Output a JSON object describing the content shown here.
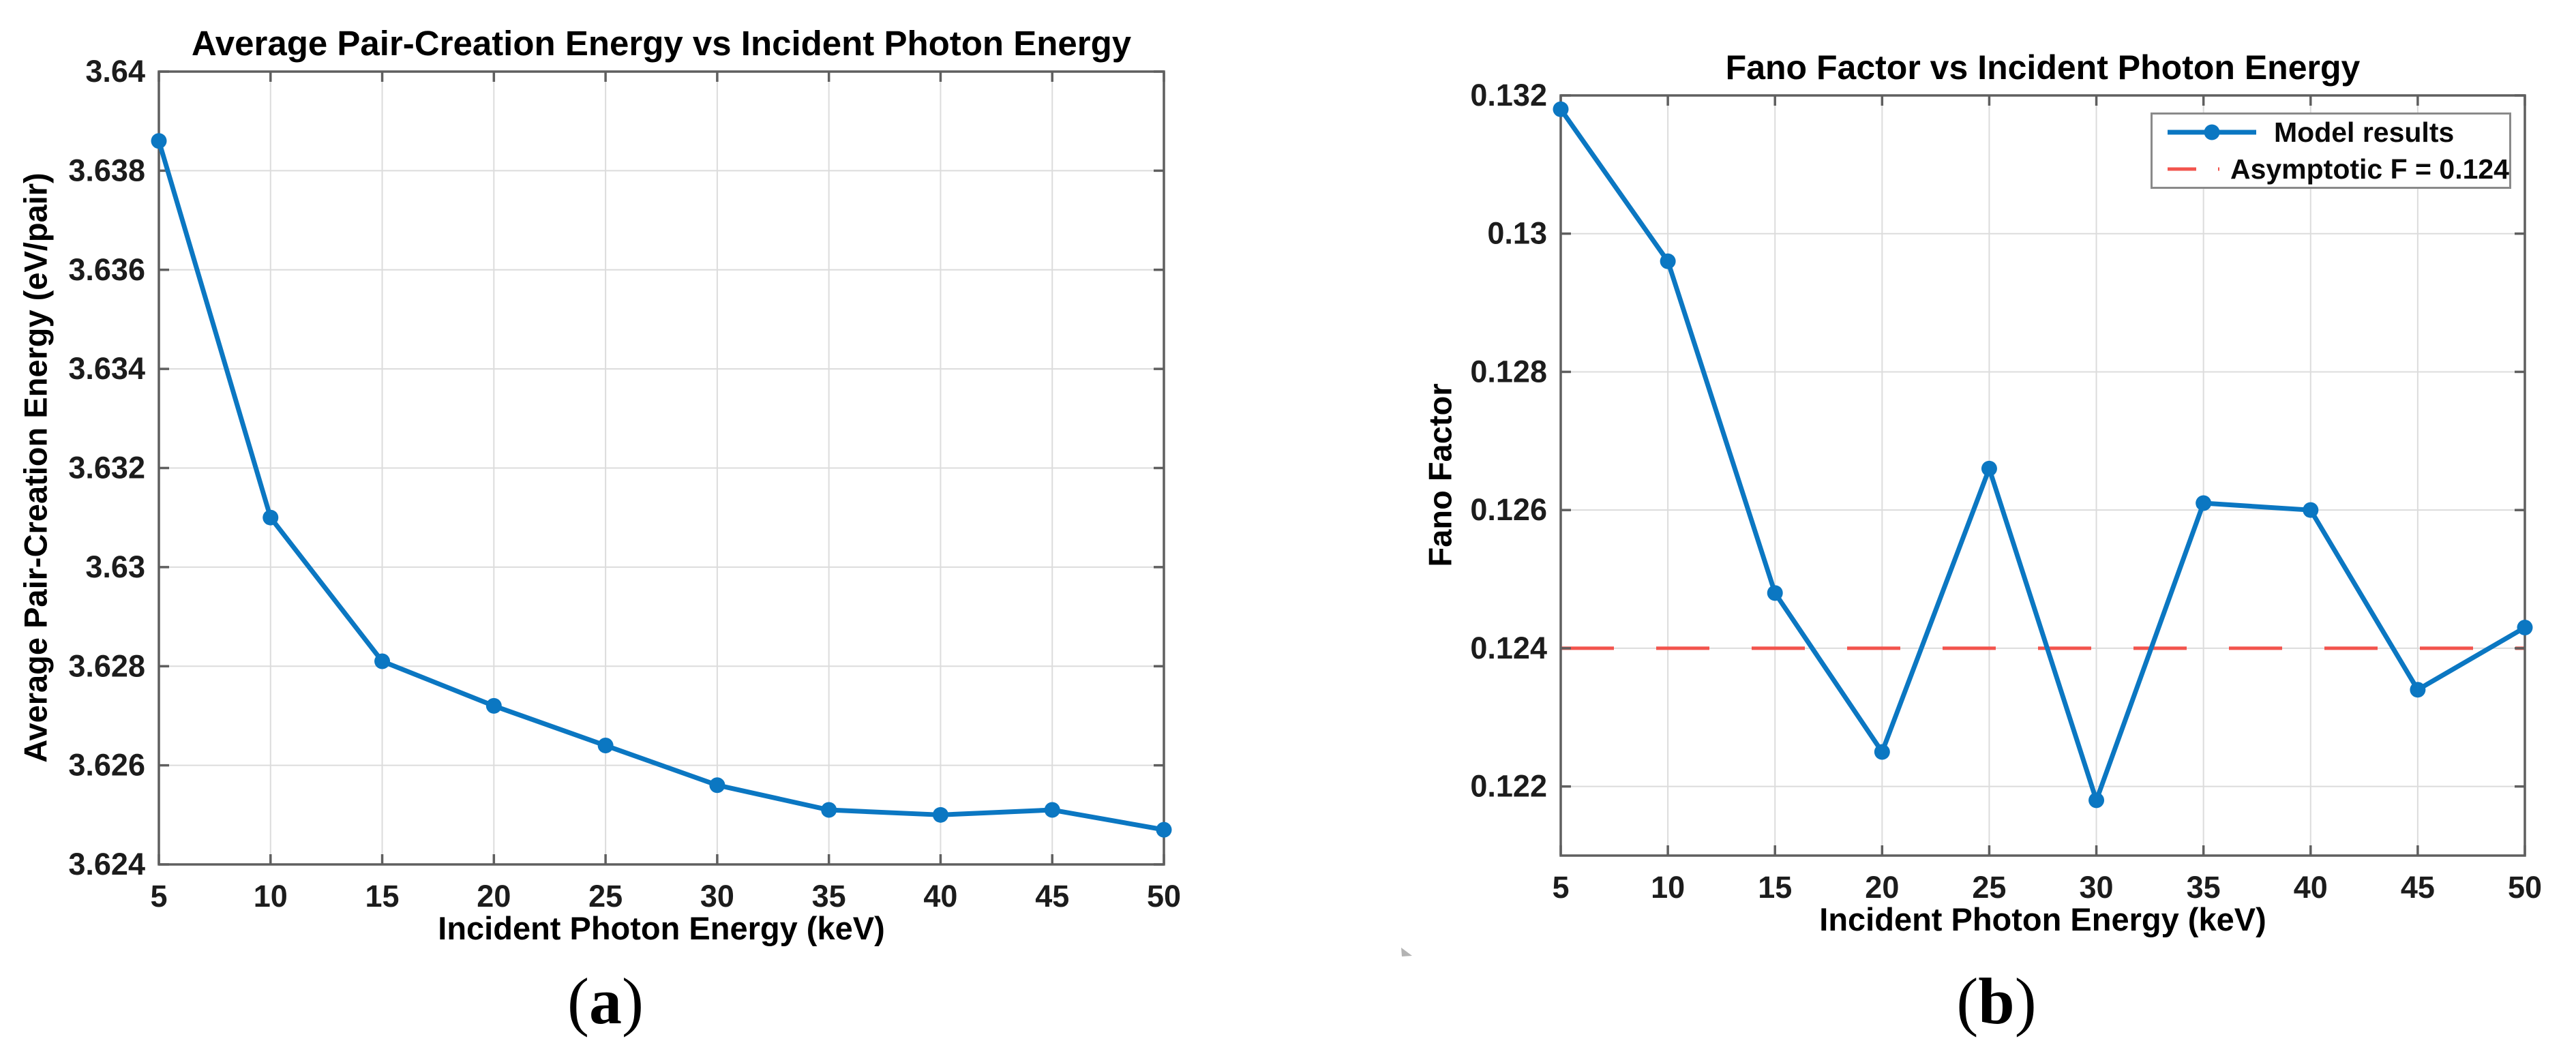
{
  "figure": {
    "background": "#ffffff",
    "panels": [
      {
        "caption_open": "(",
        "caption_letter": "a",
        "caption_close": ")"
      },
      {
        "caption_open": "(",
        "caption_letter": "b",
        "caption_close": ")"
      }
    ]
  },
  "colors": {
    "series_blue": "#0b77c2",
    "asymptote_red": "#f2544d",
    "axis_gray": "#5f5f5f",
    "grid_gray": "#dcdcdc",
    "tick_text": "#1c1c1c",
    "legend_border": "#8a8a8a",
    "artifact_gray": "#ababab"
  },
  "chart_data": [
    {
      "type": "line",
      "title": "Average Pair-Creation Energy vs Incident Photon Energy",
      "xlabel": "Incident Photon Energy (keV)",
      "ylabel": "Average Pair-Creation Energy (eV/pair)",
      "x": [
        5,
        10,
        15,
        20,
        25,
        30,
        35,
        40,
        45,
        50
      ],
      "y": [
        3.6386,
        3.631,
        3.6281,
        3.6272,
        3.6264,
        3.6256,
        3.6251,
        3.625,
        3.6251,
        3.6247
      ],
      "xlim": [
        5,
        50
      ],
      "ylim": [
        3.624,
        3.64
      ],
      "xticks": [
        5,
        10,
        15,
        20,
        25,
        30,
        35,
        40,
        45,
        50
      ],
      "xticklabels": [
        "5",
        "10",
        "15",
        "20",
        "25",
        "30",
        "35",
        "40",
        "45",
        "50"
      ],
      "yticks": [
        3.624,
        3.626,
        3.628,
        3.63,
        3.632,
        3.634,
        3.636,
        3.638,
        3.64
      ],
      "yticklabels": [
        "3.624",
        "3.626",
        "3.628",
        "3.63",
        "3.632",
        "3.634",
        "3.636",
        "3.638",
        "3.64"
      ],
      "grid": true,
      "marker": "circle",
      "line_color": "#0b77c2"
    },
    {
      "type": "line",
      "title": "Fano Factor vs Incident Photon Energy",
      "xlabel": "Incident Photon Energy (keV)",
      "ylabel": "Fano Factor",
      "series": [
        {
          "name": "Model results",
          "x": [
            5,
            10,
            15,
            20,
            25,
            30,
            35,
            40,
            45,
            50
          ],
          "y": [
            0.1318,
            0.1296,
            0.1248,
            0.1225,
            0.1266,
            0.1218,
            0.1261,
            0.126,
            0.1234,
            0.1243
          ]
        }
      ],
      "asymptote": {
        "label": "Asymptotic F = 0.124",
        "value": 0.124,
        "style": "dashed",
        "color": "#f2544d"
      },
      "xlim": [
        5,
        50
      ],
      "ylim": [
        0.121,
        0.132
      ],
      "xticks": [
        5,
        10,
        15,
        20,
        25,
        30,
        35,
        40,
        45,
        50
      ],
      "xticklabels": [
        "5",
        "10",
        "15",
        "20",
        "25",
        "30",
        "35",
        "40",
        "45",
        "50"
      ],
      "yticks": [
        0.122,
        0.124,
        0.126,
        0.128,
        0.13,
        0.132
      ],
      "yticklabels": [
        "0.122",
        "0.124",
        "0.126",
        "0.128",
        "0.13",
        "0.132"
      ],
      "grid": true,
      "marker": "circle",
      "line_color": "#0b77c2",
      "legend_position": "top-right",
      "legend": [
        {
          "label": "Model results",
          "style": "line-marker"
        },
        {
          "label": "Asymptotic F = 0.124",
          "style": "dashed"
        }
      ]
    }
  ]
}
